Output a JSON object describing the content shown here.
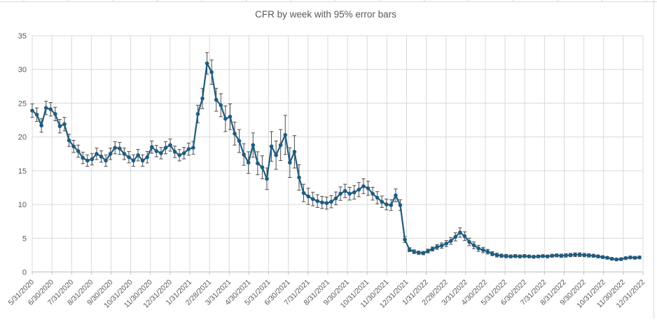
{
  "window": {
    "background": "#ffffff",
    "spreadsheet_gridline_color": "#d9d9d9"
  },
  "chart_data": {
    "type": "line",
    "title": "CFR by week with 95% error bars",
    "series_name": "CFR by week",
    "error_bars": "95% confidence interval",
    "xlabel": "",
    "ylabel": "",
    "ylim": [
      0,
      35
    ],
    "y_ticks": [
      0,
      5,
      10,
      15,
      20,
      25,
      30,
      35
    ],
    "grid": true,
    "legend": "none",
    "line_color": "#1f5c80",
    "marker_color": "#1f5c80",
    "error_bar_color": "#4d4d4d",
    "gridline_color": "#d9d9d9",
    "axis_line_color": "#bfbfbf",
    "x_tick_labels": [
      "5/31/2020",
      "6/30/2020",
      "7/31/2020",
      "8/31/2020",
      "9/30/2020",
      "10/31/2020",
      "11/30/2020",
      "12/31/2020",
      "1/31/2021",
      "2/28/2021",
      "3/31/2021",
      "4/30/2021",
      "5/31/2021",
      "6/30/2021",
      "7/31/2021",
      "8/31/2021",
      "9/30/2021",
      "10/31/2021",
      "11/30/2021",
      "12/31/2021",
      "1/31/2022",
      "2/28/2022",
      "3/31/2022",
      "4/30/2022",
      "5/31/2022",
      "6/30/2022",
      "7/31/2022",
      "8/31/2022",
      "9/30/2022",
      "10/31/2022",
      "11/30/2022",
      "12/31/2022"
    ],
    "values": [
      23.9,
      23.3,
      21.7,
      24.3,
      24.1,
      23.4,
      21.6,
      21.9,
      19.5,
      18.6,
      17.9,
      16.9,
      16.5,
      16.7,
      17.5,
      17.1,
      16.5,
      17.5,
      18.4,
      18.3,
      17.5,
      17.0,
      16.5,
      17.3,
      16.5,
      17.0,
      18.5,
      17.9,
      17.6,
      18.4,
      18.8,
      17.8,
      17.3,
      17.6,
      18.2,
      18.4,
      23.4,
      25.7,
      30.9,
      29.6,
      25.5,
      24.7,
      22.7,
      23.0,
      20.5,
      19.4,
      17.4,
      16.2,
      18.8,
      16.1,
      15.5,
      13.8,
      18.6,
      17.3,
      18.8,
      20.3,
      16.2,
      17.8,
      14.0,
      11.7,
      11.2,
      10.8,
      10.5,
      10.3,
      10.2,
      10.4,
      10.9,
      11.6,
      12.0,
      11.6,
      11.8,
      12.2,
      12.7,
      12.4,
      11.6,
      11.0,
      10.4,
      10.0,
      9.9,
      11.35,
      9.9,
      4.8,
      3.3,
      3.0,
      2.85,
      2.8,
      3.1,
      3.4,
      3.7,
      3.9,
      4.2,
      4.6,
      5.2,
      5.85,
      5.3,
      4.45,
      3.95,
      3.5,
      3.25,
      3.0,
      2.7,
      2.5,
      2.4,
      2.35,
      2.3,
      2.35,
      2.3,
      2.35,
      2.3,
      2.25,
      2.3,
      2.35,
      2.3,
      2.4,
      2.45,
      2.4,
      2.45,
      2.5,
      2.55,
      2.55,
      2.5,
      2.45,
      2.4,
      2.3,
      2.2,
      2.1,
      1.95,
      1.85,
      1.9,
      2.05,
      2.15,
      2.1,
      2.15
    ],
    "errors": [
      1.0,
      1.0,
      1.0,
      1.0,
      1.0,
      1.0,
      1.0,
      1.0,
      0.9,
      0.9,
      0.9,
      0.85,
      0.85,
      0.85,
      0.85,
      0.85,
      0.85,
      0.85,
      0.9,
      0.9,
      0.85,
      0.85,
      0.85,
      0.85,
      0.85,
      0.85,
      0.9,
      0.85,
      0.85,
      0.9,
      0.9,
      0.85,
      0.85,
      0.85,
      0.9,
      0.95,
      1.3,
      1.5,
      1.6,
      1.8,
      1.7,
      1.7,
      1.9,
      1.9,
      1.7,
      1.7,
      1.6,
      1.6,
      1.8,
      1.7,
      1.7,
      1.6,
      2.2,
      2.1,
      2.3,
      2.9,
      2.2,
      2.4,
      1.9,
      1.3,
      1.2,
      1.0,
      0.95,
      0.9,
      0.9,
      0.9,
      0.95,
      1.0,
      1.0,
      0.95,
      1.0,
      1.05,
      1.1,
      1.05,
      0.95,
      0.9,
      0.85,
      0.8,
      0.8,
      0.95,
      0.8,
      0.45,
      0.3,
      0.28,
      0.25,
      0.25,
      0.28,
      0.3,
      0.35,
      0.4,
      0.45,
      0.5,
      0.6,
      0.7,
      0.65,
      0.55,
      0.5,
      0.45,
      0.4,
      0.35,
      0.3,
      0.28,
      0.25,
      0.25,
      0.22,
      0.22,
      0.22,
      0.22,
      0.2,
      0.2,
      0.2,
      0.2,
      0.2,
      0.22,
      0.22,
      0.25,
      0.25,
      0.25,
      0.28,
      0.28,
      0.25,
      0.25,
      0.22,
      0.22,
      0.2,
      0.2,
      0.18,
      0.18,
      0.18,
      0.18,
      0.2,
      0.2,
      0.2
    ]
  }
}
